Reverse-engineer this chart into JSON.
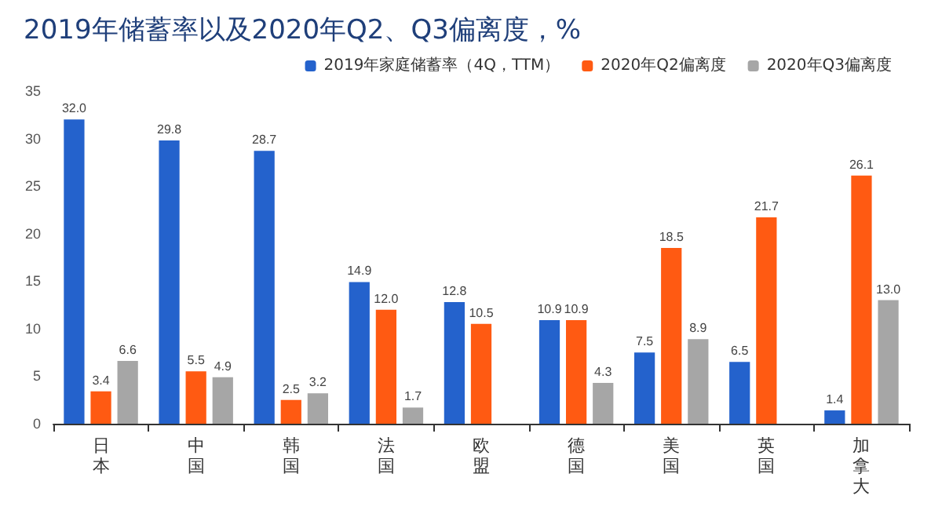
{
  "chart_data": {
    "type": "bar",
    "title": "2019年储蓄率以及2020年Q2、Q3偏离度，%",
    "categories": [
      "日本",
      "中国",
      "韩国",
      "法国",
      "欧盟",
      "德国",
      "美国",
      "英国",
      "加拿大"
    ],
    "series": [
      {
        "name": "2019年家庭储蓄率（4Q，TTM）",
        "color": "#2462cc",
        "values": [
          32.0,
          29.8,
          28.7,
          14.9,
          12.8,
          10.9,
          7.5,
          6.5,
          1.4
        ],
        "value_labels": [
          "32.0",
          "29.8",
          "28.7",
          "14.9",
          "12.8",
          "10.9",
          "7.5",
          "6.5",
          "1.4"
        ]
      },
      {
        "name": "2020年Q2偏离度",
        "color": "#ff5a12",
        "values": [
          3.4,
          5.5,
          2.5,
          12.0,
          10.5,
          10.9,
          18.5,
          21.7,
          26.1
        ],
        "value_labels": [
          "3.4",
          "5.5",
          "2.5",
          "12.0",
          "10.5",
          "10.9",
          "18.5",
          "21.7",
          "26.1"
        ]
      },
      {
        "name": "2020年Q3偏离度",
        "color": "#a6a6a6",
        "values": [
          6.6,
          4.9,
          3.2,
          1.7,
          null,
          4.3,
          8.9,
          null,
          13.0
        ],
        "value_labels": [
          "6.6",
          "4.9",
          "3.2",
          "1.7",
          null,
          "4.3",
          "8.9",
          null,
          "13.0"
        ]
      }
    ],
    "ylim": [
      0,
      35
    ],
    "yticks": [
      0,
      5,
      10,
      15,
      20,
      25,
      30,
      35
    ],
    "grid": false,
    "legend": "top right"
  }
}
